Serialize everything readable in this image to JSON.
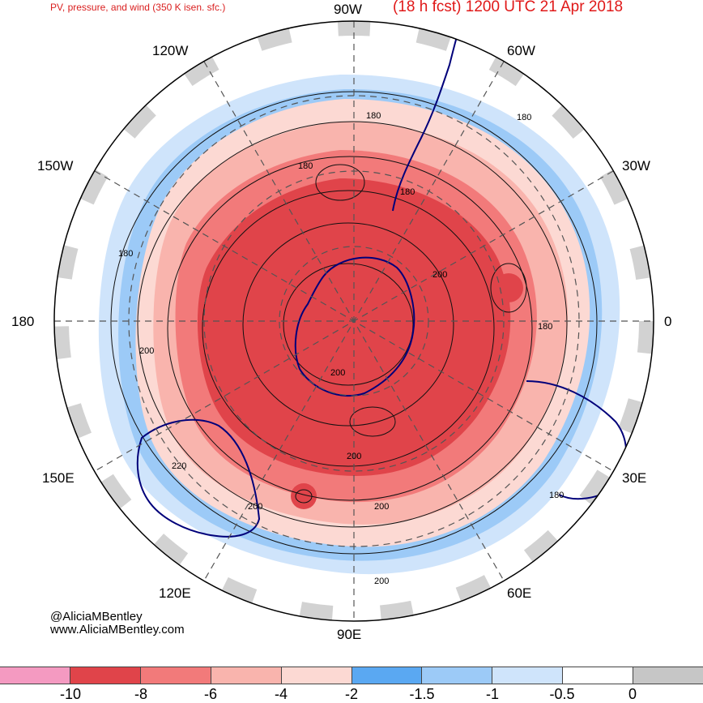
{
  "header": {
    "left_title": "PV, pressure, and wind (350 K isen. sfc.)",
    "right_title": "(18 h fcst) 1200 UTC 21 Apr 2018"
  },
  "credits": {
    "handle": "@AliciaMBentley",
    "website": "www.AliciaMBentley.com"
  },
  "longitude_labels": [
    "90W",
    "60W",
    "30W",
    "0",
    "30E",
    "60E",
    "90E",
    "120E",
    "150E",
    "180",
    "150W",
    "120W"
  ],
  "contour_labels": [
    "180",
    "180",
    "180",
    "180",
    "180",
    "180",
    "180",
    "200",
    "200",
    "200",
    "200",
    "200",
    "200",
    "200",
    "220"
  ],
  "colorbar": {
    "colors": [
      "#f49ac1",
      "#e0444a",
      "#f27a7a",
      "#f9b4ad",
      "#fcd9d3",
      "#5aa8f2",
      "#9ccaf7",
      "#cfe4fb",
      "#ffffff",
      "#c6c6c6"
    ],
    "ticks": [
      "-10",
      "-8",
      "-6",
      "-4",
      "-2",
      "-1.5",
      "-1",
      "-0.5",
      "0"
    ]
  }
}
